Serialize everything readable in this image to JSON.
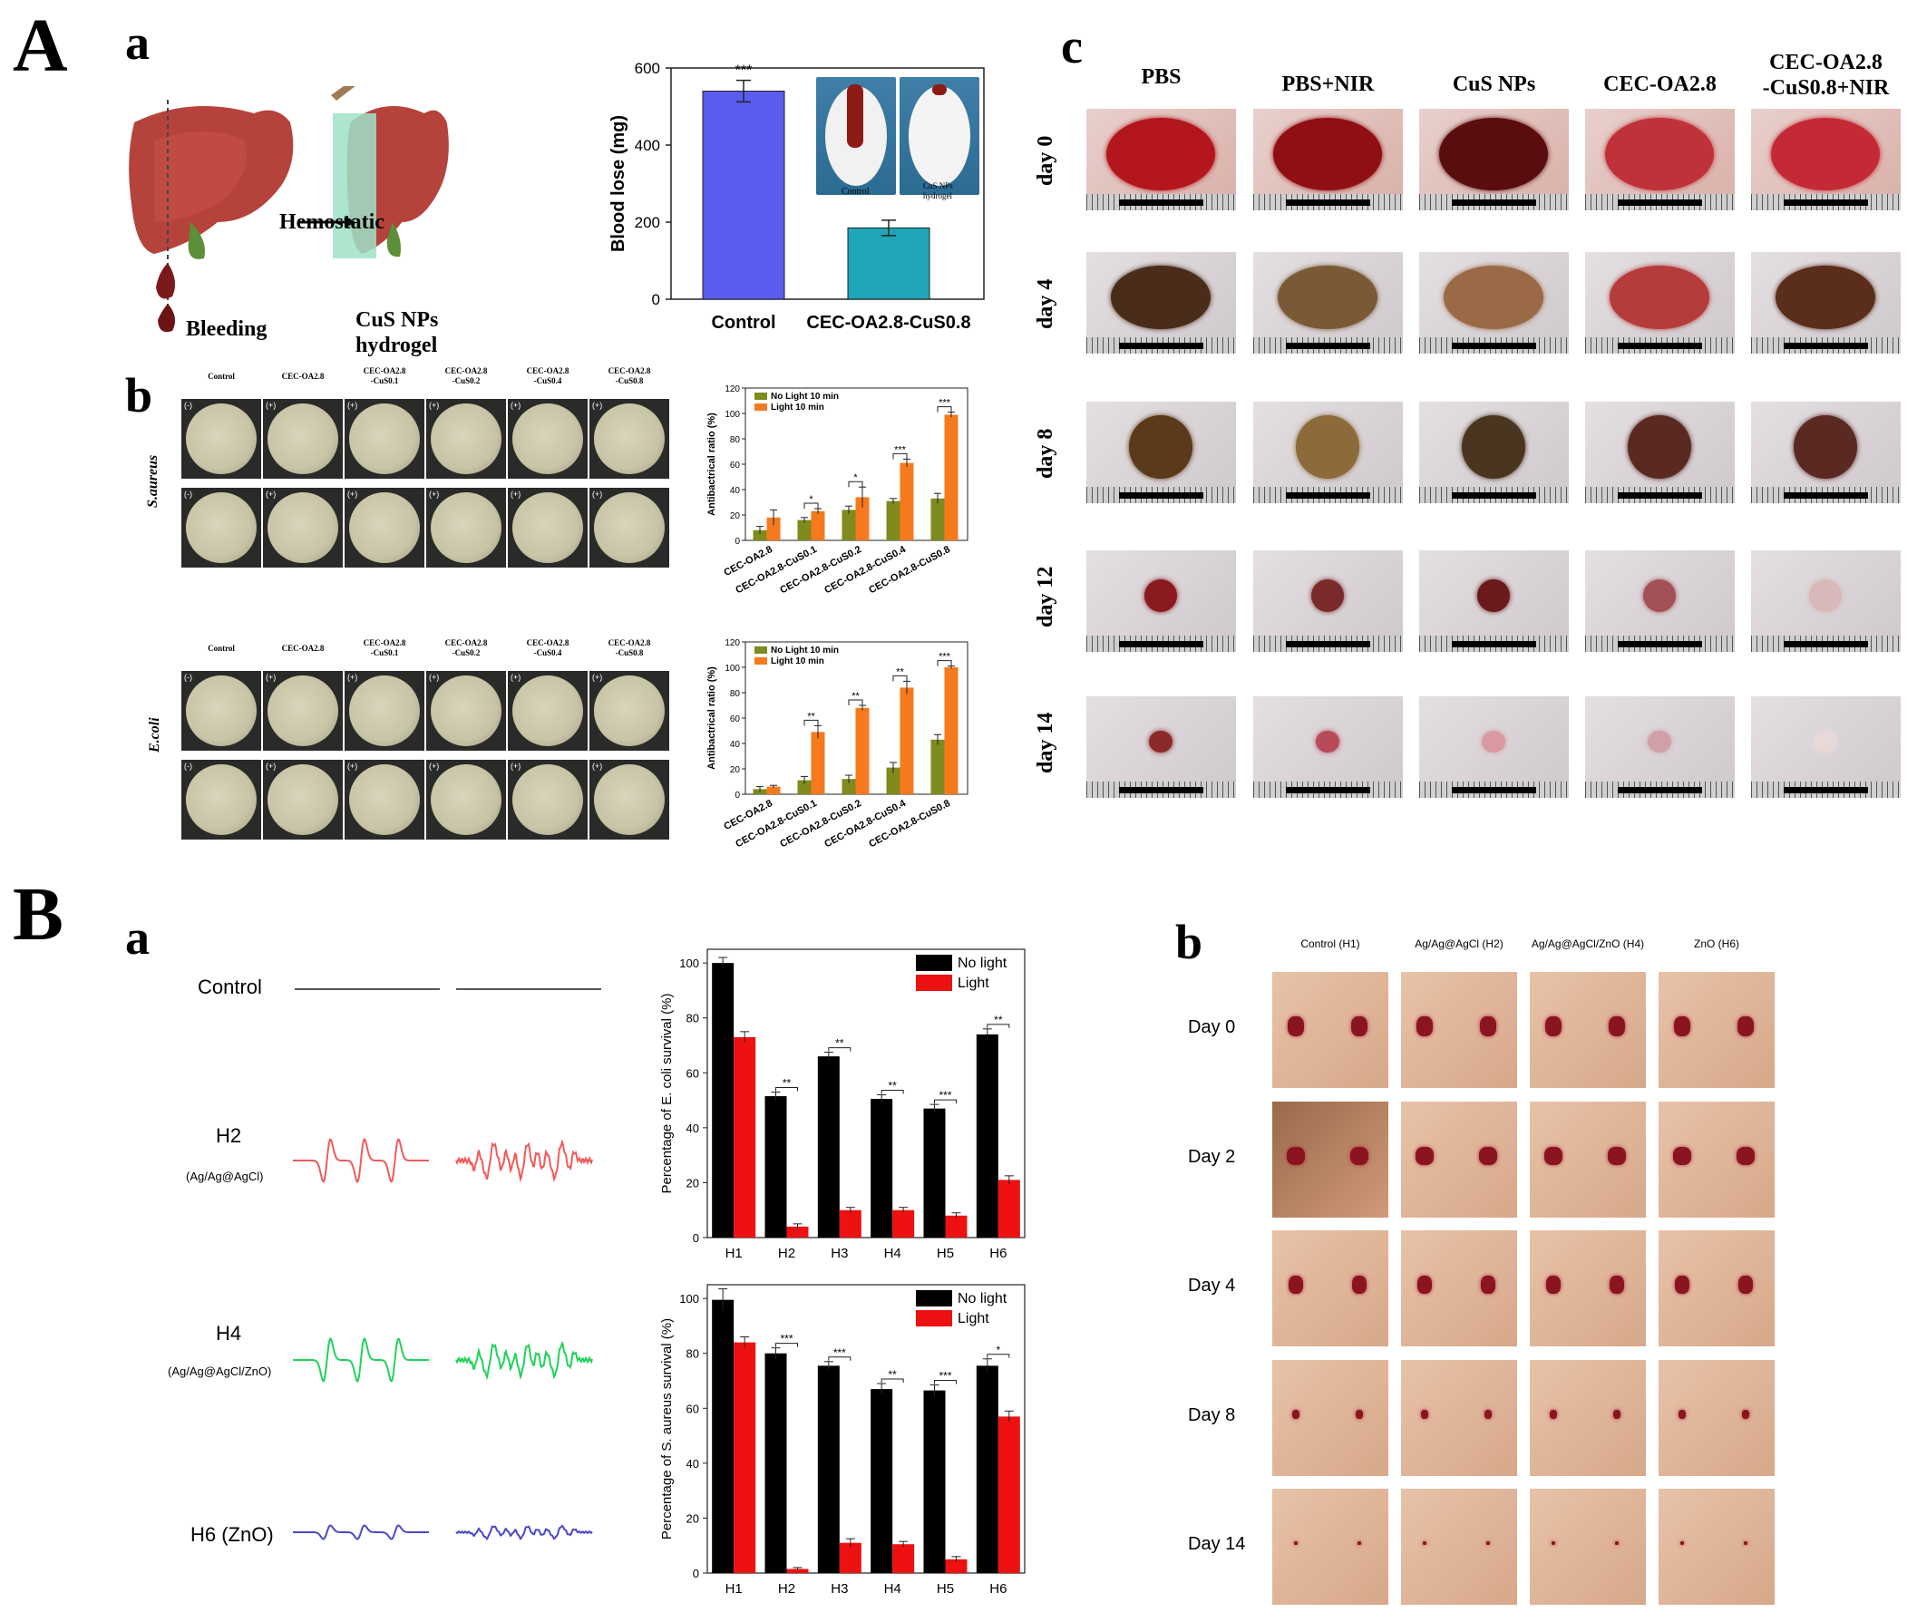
{
  "panels": {
    "A": "A",
    "B": "B",
    "Aa": "a",
    "Ab": "b",
    "Ac": "c",
    "Ba": "a",
    "Bb": "b"
  },
  "liver": {
    "hemostatic": "Hemostatic",
    "bleeding": "Bleeding",
    "cus_line1": "CuS NPs",
    "cus_line2": "hydrogel"
  },
  "inset_labels": {
    "control": "Control",
    "cus_line1": "CuS NPs",
    "cus_line2": "hydrogel"
  },
  "plates": {
    "saureus_label": "S.aureus",
    "ecoli_label": "E.coli",
    "headers_top": [
      "Control",
      "CEC-OA2.8",
      "CEC-OA2.8\n-CuS0.1",
      "CEC-OA2.8\n-CuS0.2",
      "CEC-OA2.8\n-CuS0.4",
      "CEC-OA2.8\n-CuS0.8"
    ],
    "headers_bottom": [
      "Control",
      "CEC-OA2.8",
      "CEC-OA2.8\n-CuS0.1",
      "CEC-OA2.8\n-CuS0.2",
      "CEC-OA2.8\n-CuS0.4",
      "CEC-OA2.8\n-CuS0.8"
    ],
    "row_marks": [
      "(-)",
      "(+)"
    ]
  },
  "wound_A": {
    "columns": [
      "PBS",
      "PBS+NIR",
      "CuS NPs",
      "CEC-OA2.8",
      "CEC-OA2.8\n-CuS0.8+NIR"
    ],
    "rows": [
      "day 0",
      "day 4",
      "day 8",
      "day 12",
      "day 14"
    ]
  },
  "epr": {
    "control": "Control",
    "h2": "H2",
    "h2_sub": "(Ag/Ag@AgCl)",
    "h4": "H4",
    "h4_sub": "(Ag/Ag@AgCl/ZnO)",
    "h6": "H6 (ZnO)",
    "colors": {
      "h2": "#f25a5a",
      "h4": "#22d15a",
      "h6": "#4a48c8"
    }
  },
  "wound_B": {
    "columns": [
      "Control (H1)",
      "Ag/Ag@AgCl (H2)",
      "Ag/Ag@AgCl/ZnO (H4)",
      "ZnO (H6)"
    ],
    "rows": [
      "Day 0",
      "Day 2",
      "Day 4",
      "Day 8",
      "Day 14"
    ]
  },
  "chart_data": [
    {
      "id": "blood-loss",
      "type": "bar",
      "categories": [
        "Control",
        "CEC-OA2.8-CuS0.8"
      ],
      "values": [
        540,
        185
      ],
      "errors": [
        28,
        20
      ],
      "colors": [
        "#5a5cf0",
        "#1fa6b8"
      ],
      "ylabel": "Blood lose (mg)",
      "ylim": [
        0,
        600
      ],
      "yticks": [
        0,
        200,
        400,
        600
      ],
      "annotation": "***"
    },
    {
      "id": "antibac-saureus",
      "type": "bar",
      "ylabel": "Antibactrical ratio (%)",
      "ylim": [
        0,
        120
      ],
      "yticks": [
        0,
        20,
        40,
        60,
        80,
        100,
        120
      ],
      "categories": [
        "CEC-OA2.8",
        "CEC-OA2.8-CuS0.1",
        "CEC-OA2.8-CuS0.2",
        "CEC-OA2.8-CuS0.4",
        "CEC-OA2.8-CuS0.8"
      ],
      "series": [
        {
          "name": "No Light 10 min",
          "color": "#7f8a1f",
          "values": [
            8,
            16,
            24,
            31,
            33
          ],
          "errors": [
            3,
            2,
            3,
            2,
            4
          ]
        },
        {
          "name": "Light 10 min",
          "color": "#f57a1e",
          "values": [
            18,
            23,
            34,
            61,
            99
          ],
          "errors": [
            6,
            2,
            8,
            3,
            2
          ]
        }
      ],
      "significance": [
        "",
        "*",
        "*",
        "***",
        "***"
      ]
    },
    {
      "id": "antibac-ecoli",
      "type": "bar",
      "ylabel": "Antibactrical ratio (%)",
      "ylim": [
        0,
        120
      ],
      "yticks": [
        0,
        20,
        40,
        60,
        80,
        100,
        120
      ],
      "categories": [
        "CEC-OA2.8",
        "CEC-OA2.8-CuS0.1",
        "CEC-OA2.8-CuS0.2",
        "CEC-OA2.8-CuS0.4",
        "CEC-OA2.8-CuS0.8"
      ],
      "series": [
        {
          "name": "No Light 10 min",
          "color": "#7f8a1f",
          "values": [
            4,
            11,
            12,
            21,
            43
          ],
          "errors": [
            2,
            3,
            3,
            4,
            4
          ]
        },
        {
          "name": "Light 10 min",
          "color": "#f57a1e",
          "values": [
            6,
            49,
            68,
            84,
            100
          ],
          "errors": [
            1,
            5,
            2,
            5,
            1
          ]
        }
      ],
      "significance": [
        "",
        "**",
        "**",
        "**",
        "***"
      ]
    },
    {
      "id": "ecoli-survival",
      "type": "bar",
      "ylabel": "Percentage of E. coli survival (%)",
      "ylim": [
        0,
        105
      ],
      "yticks": [
        0,
        20,
        40,
        60,
        80,
        100
      ],
      "categories": [
        "H1",
        "H2",
        "H3",
        "H4",
        "H5",
        "H6"
      ],
      "series": [
        {
          "name": "No light",
          "color": "#000000",
          "values": [
            100,
            51.5,
            66,
            50.5,
            47,
            74
          ],
          "errors": [
            2,
            1.5,
            1.5,
            1.5,
            1.5,
            2
          ]
        },
        {
          "name": "Light",
          "color": "#ee1111",
          "values": [
            73,
            4,
            10,
            10,
            8,
            21
          ],
          "errors": [
            2,
            1,
            1,
            1,
            1,
            1.5
          ]
        }
      ],
      "significance": [
        "",
        "**",
        "**",
        "**",
        "***",
        "**"
      ]
    },
    {
      "id": "saureus-survival",
      "type": "bar",
      "ylabel": "Percentage of S. aureus survival (%)",
      "ylim": [
        0,
        105
      ],
      "yticks": [
        0,
        20,
        40,
        60,
        80,
        100
      ],
      "categories": [
        "H1",
        "H2",
        "H3",
        "H4",
        "H5",
        "H6"
      ],
      "series": [
        {
          "name": "No light",
          "color": "#000000",
          "values": [
            99.5,
            80,
            75.5,
            67,
            66.5,
            75.5
          ],
          "errors": [
            4,
            2,
            1.5,
            2,
            2,
            2.5
          ]
        },
        {
          "name": "Light",
          "color": "#ee1111",
          "values": [
            84,
            1.5,
            11,
            10.5,
            5,
            57
          ],
          "errors": [
            2,
            0.5,
            1.5,
            1,
            1,
            2
          ]
        }
      ],
      "significance": [
        "",
        "***",
        "***",
        "**",
        "***",
        "*"
      ]
    }
  ]
}
